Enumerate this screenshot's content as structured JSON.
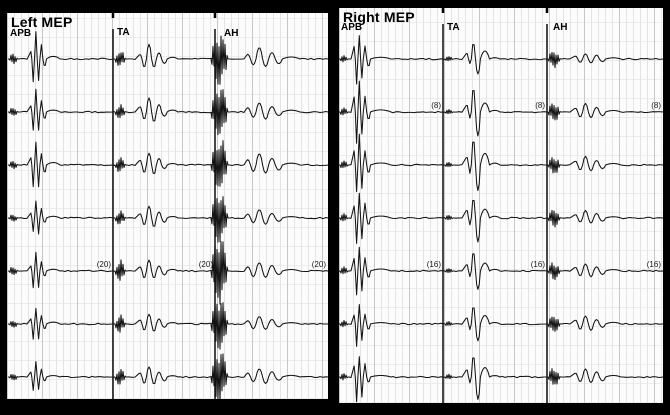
{
  "figure": {
    "kind": "motor-evoked-potential-recording",
    "paper_color": "#fcfcfc",
    "trace_color": "#141414",
    "frame_color": "#000000",
    "grid_minor_color": "#e4e4e4",
    "grid_major_color": "#c8c8c8",
    "grid_horizontal_color": "#ededed"
  },
  "chart_data": [
    {
      "type": "line",
      "title": "Left MEP",
      "channels": [
        "APB",
        "TA",
        "AH"
      ],
      "n_sweeps": 7,
      "legend_position": "none",
      "grid": true,
      "sweep_annotations": [
        {
          "sweep": 5,
          "label": "(20)",
          "applies_to": [
            "APB",
            "TA",
            "AH"
          ]
        }
      ],
      "sweeps": [
        {
          "APB": {
            "artifact_amp": 6,
            "mep_amp": 25
          },
          "TA": {
            "artifact_amp": 9,
            "mep_amp": 14
          },
          "AH": {
            "artifact_amp": 30,
            "mep_amp": 13
          }
        },
        {
          "APB": {
            "artifact_amp": 5,
            "mep_amp": 21
          },
          "TA": {
            "artifact_amp": 8,
            "mep_amp": 15
          },
          "AH": {
            "artifact_amp": 28,
            "mep_amp": 11
          }
        },
        {
          "APB": {
            "artifact_amp": 5,
            "mep_amp": 23
          },
          "TA": {
            "artifact_amp": 8,
            "mep_amp": 13
          },
          "AH": {
            "artifact_amp": 30,
            "mep_amp": 13
          }
        },
        {
          "APB": {
            "artifact_amp": 4,
            "mep_amp": 17
          },
          "TA": {
            "artifact_amp": 8,
            "mep_amp": 13
          },
          "AH": {
            "artifact_amp": 30,
            "mep_amp": 10
          }
        },
        {
          "APB": {
            "artifact_amp": 5,
            "mep_amp": 19
          },
          "TA": {
            "artifact_amp": 12,
            "mep_amp": 12
          },
          "AH": {
            "artifact_amp": 36,
            "mep_amp": 11
          }
        },
        {
          "APB": {
            "artifact_amp": 4,
            "mep_amp": 17
          },
          "TA": {
            "artifact_amp": 10,
            "mep_amp": 11
          },
          "AH": {
            "artifact_amp": 30,
            "mep_amp": 9
          }
        },
        {
          "APB": {
            "artifact_amp": 4,
            "mep_amp": 15
          },
          "TA": {
            "artifact_amp": 10,
            "mep_amp": 12
          },
          "AH": {
            "artifact_amp": 28,
            "mep_amp": 10
          }
        }
      ]
    },
    {
      "type": "line",
      "title": "Right MEP",
      "channels": [
        "APB",
        "TA",
        "AH"
      ],
      "n_sweeps": 7,
      "legend_position": "none",
      "grid": true,
      "sweep_annotations": [
        {
          "sweep": 2,
          "label": "(8)",
          "applies_to": [
            "APB",
            "TA",
            "AH"
          ]
        },
        {
          "sweep": 5,
          "label": "(16)",
          "applies_to": [
            "APB",
            "TA",
            "AH"
          ]
        }
      ],
      "sweeps": [
        {
          "APB": {
            "artifact_amp": 4,
            "mep_amp": 27
          },
          "TA": {
            "artifact_amp": 3,
            "mep_amp": 17
          },
          "AH": {
            "artifact_amp": 9,
            "mep_amp": 7
          }
        },
        {
          "APB": {
            "artifact_amp": 5,
            "mep_amp": 31
          },
          "TA": {
            "artifact_amp": 3,
            "mep_amp": 22
          },
          "AH": {
            "artifact_amp": 10,
            "mep_amp": 10
          }
        },
        {
          "APB": {
            "artifact_amp": 5,
            "mep_amp": 30
          },
          "TA": {
            "artifact_amp": 3,
            "mep_amp": 25
          },
          "AH": {
            "artifact_amp": 10,
            "mep_amp": 10
          }
        },
        {
          "APB": {
            "artifact_amp": 5,
            "mep_amp": 28
          },
          "TA": {
            "artifact_amp": 3,
            "mep_amp": 22
          },
          "AH": {
            "artifact_amp": 10,
            "mep_amp": 9
          }
        },
        {
          "APB": {
            "artifact_amp": 5,
            "mep_amp": 26
          },
          "TA": {
            "artifact_amp": 3,
            "mep_amp": 20
          },
          "AH": {
            "artifact_amp": 10,
            "mep_amp": 9
          }
        },
        {
          "APB": {
            "artifact_amp": 4,
            "mep_amp": 22
          },
          "TA": {
            "artifact_amp": 3,
            "mep_amp": 18
          },
          "AH": {
            "artifact_amp": 10,
            "mep_amp": 10
          }
        },
        {
          "APB": {
            "artifact_amp": 4,
            "mep_amp": 24
          },
          "TA": {
            "artifact_amp": 3,
            "mep_amp": 20
          },
          "AH": {
            "artifact_amp": 10,
            "mep_amp": 10
          }
        }
      ]
    }
  ]
}
